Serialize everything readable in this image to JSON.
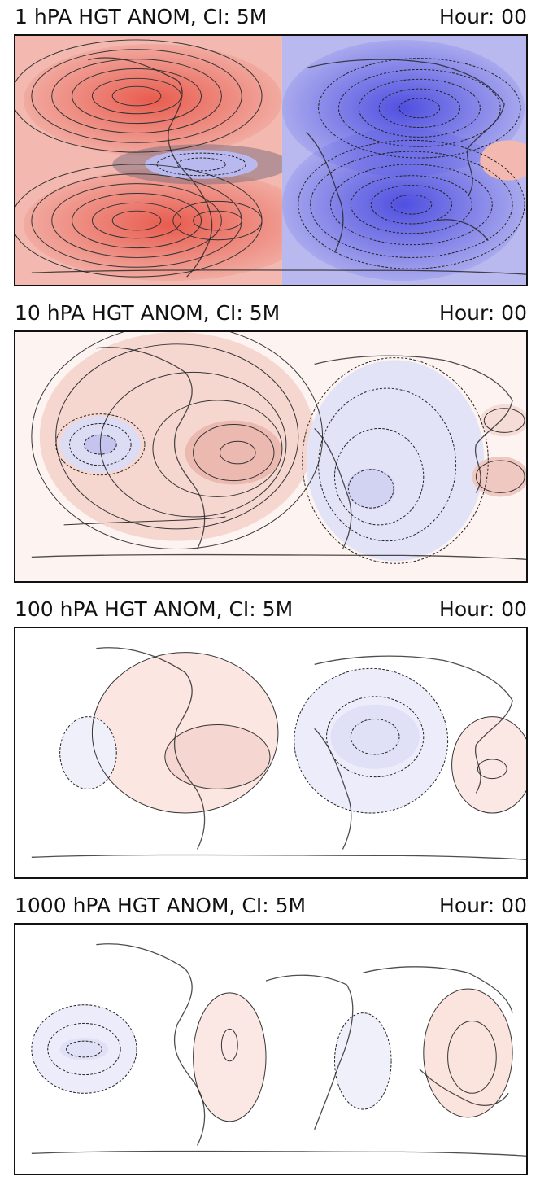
{
  "panels": [
    {
      "title": "1 hPA HGT ANOM, CI: 5M",
      "hour": "Hour: 00",
      "intensity": 1.0
    },
    {
      "title": "10 hPA HGT ANOM, CI: 5M",
      "hour": "Hour: 00",
      "intensity": 0.45
    },
    {
      "title": "100 hPA HGT ANOM, CI: 5M",
      "hour": "Hour: 00",
      "intensity": 0.25
    },
    {
      "title": "1000 hPA HGT ANOM, CI: 5M",
      "hour": "Hour: 00",
      "intensity": 0.2
    }
  ],
  "colors": {
    "positive": "#e8574a",
    "negative": "#4a4ae0",
    "contour": "#333333",
    "coastline": "#222222"
  }
}
